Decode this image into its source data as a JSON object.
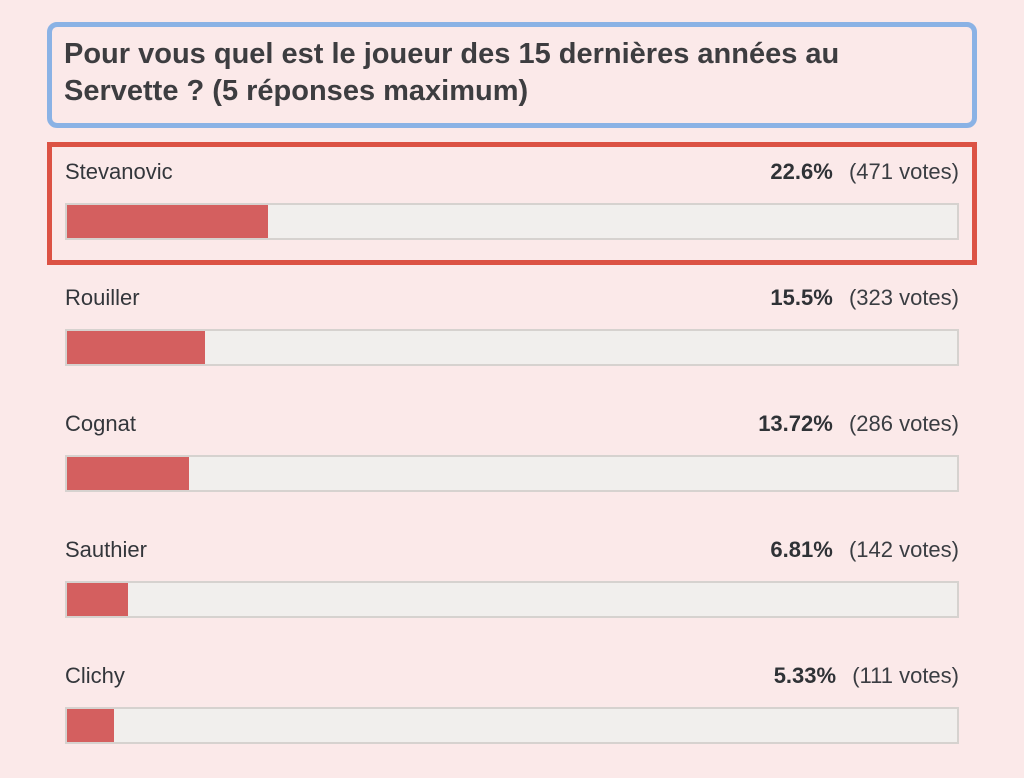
{
  "poll": {
    "question": "Pour vous quel est le joueur des 15 dernières années au Servette ? (5 réponses maximum)",
    "options": [
      {
        "label": "Stevanovic",
        "percent": "22.6%",
        "votes": "(471 votes)",
        "percent_value": 22.6,
        "highlighted": true
      },
      {
        "label": "Rouiller",
        "percent": "15.5%",
        "votes": "(323 votes)",
        "percent_value": 15.5,
        "highlighted": false
      },
      {
        "label": "Cognat",
        "percent": "13.72%",
        "votes": "(286 votes)",
        "percent_value": 13.72,
        "highlighted": false
      },
      {
        "label": "Sauthier",
        "percent": "6.81%",
        "votes": "(142 votes)",
        "percent_value": 6.81,
        "highlighted": false
      },
      {
        "label": "Clichy",
        "percent": "5.33%",
        "votes": "(111 votes)",
        "percent_value": 5.33,
        "highlighted": false
      }
    ],
    "colors": {
      "page_background": "#fbe9e9",
      "question_border": "#8ab2e5",
      "highlight_border": "#dc5244",
      "bar_fill": "#d45f5f",
      "bar_track": "#f1efed",
      "bar_track_border": "#d6d2cf",
      "text": "#33363b"
    }
  },
  "chart_data": {
    "type": "bar",
    "orientation": "horizontal",
    "title": "Pour vous quel est le joueur des 15 dernières années au Servette ? (5 réponses maximum)",
    "categories": [
      "Stevanovic",
      "Rouiller",
      "Cognat",
      "Sauthier",
      "Clichy"
    ],
    "series": [
      {
        "name": "percent_of_votes",
        "values": [
          22.6,
          15.5,
          13.72,
          6.81,
          5.33
        ]
      },
      {
        "name": "vote_counts",
        "values": [
          471,
          323,
          286,
          142,
          111
        ]
      }
    ],
    "xlim": [
      0,
      100
    ],
    "grid": false,
    "legend_position": "none",
    "annotations": [
      "Stevanovic row is outlined with a red highlight box",
      "question is outlined with a blue highlight box"
    ]
  }
}
